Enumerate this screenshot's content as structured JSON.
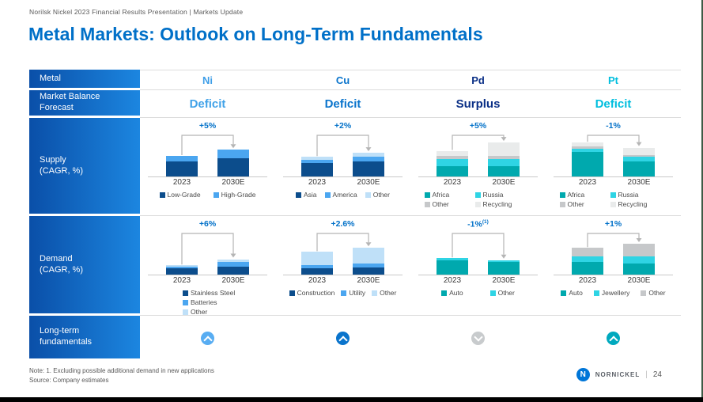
{
  "page": {
    "breadcrumb": "Norilsk Nickel 2023 Financial Results Presentation | Markets Update",
    "title": "Metal Markets: Outlook on Long-Term Fundamentals",
    "note": "Note: 1. Excluding possible additional demand in new applications",
    "source": "Source: Company estimates",
    "logo_text": "NORNICKEL",
    "logo_glyph": "N",
    "page_divider": "|",
    "page_number": "24"
  },
  "table": {
    "row_labels": {
      "metal": "Metal",
      "forecast_line1": "Market Balance",
      "forecast_line2": "Forecast",
      "supply_line1": "Supply",
      "supply_line2": "(CAGR, %)",
      "demand_line1": "Demand",
      "demand_line2": "(CAGR, %)",
      "fundamentals_line1": "Long-term",
      "fundamentals_line2": "fundamentals"
    },
    "metals": [
      {
        "symbol": "Ni",
        "color": "#3E9EE8",
        "forecast": "Deficit",
        "forecast_color": "#41A2E8",
        "trend": "up",
        "trend_color": "#58ADF2"
      },
      {
        "symbol": "Cu",
        "color": "#0A74CC",
        "forecast": "Deficit",
        "forecast_color": "#0A74CC",
        "trend": "up",
        "trend_color": "#0A74CC"
      },
      {
        "symbol": "Pd",
        "color": "#0A2F86",
        "forecast": "Surplus",
        "forecast_color": "#0A2F86",
        "trend": "down",
        "trend_color": "#C8CBCD"
      },
      {
        "symbol": "Pt",
        "color": "#00BEDE",
        "forecast": "Deficit",
        "forecast_color": "#00BEDE",
        "trend": "up",
        "trend_color": "#00A9BE"
      }
    ]
  },
  "chart_data": [
    {
      "id": "ni-supply",
      "metal": "Ni",
      "row": "Supply (CAGR, %)",
      "type": "bar",
      "stacked": true,
      "cagr_label": "+5%",
      "cagr_sup": "",
      "categories": [
        "2023",
        "2030E"
      ],
      "unit": "relative height, estimated from pixels (no numeric axis shown)",
      "series": [
        {
          "name": "Low-Grade",
          "color": "#0C4D8C",
          "values": [
            15,
            18
          ]
        },
        {
          "name": "High-Grade",
          "color": "#4BA6F0",
          "values": [
            5,
            8
          ]
        }
      ],
      "legend_layout": "row",
      "legend_gap": 16
    },
    {
      "id": "cu-supply",
      "metal": "Cu",
      "row": "Supply (CAGR, %)",
      "type": "bar",
      "stacked": true,
      "cagr_label": "+2%",
      "cagr_sup": "",
      "categories": [
        "2023",
        "2030E"
      ],
      "unit": "relative height, estimated from pixels (no numeric axis shown)",
      "series": [
        {
          "name": "Asia",
          "color": "#0C4D8C",
          "values": [
            13,
            15
          ]
        },
        {
          "name": "America",
          "color": "#4BA6F0",
          "values": [
            3,
            4
          ]
        },
        {
          "name": "Other",
          "color": "#BFE0F8",
          "values": [
            3,
            4
          ]
        }
      ],
      "legend_layout": "row",
      "legend_gap": 10
    },
    {
      "id": "pd-supply",
      "metal": "Pd",
      "row": "Supply (CAGR, %)",
      "type": "bar",
      "stacked": true,
      "cagr_label": "+5%",
      "cagr_sup": "",
      "categories": [
        "2023",
        "2030E"
      ],
      "unit": "relative height, estimated from pixels (no numeric axis shown)",
      "series": [
        {
          "name": "Africa",
          "color": "#00A9AE",
          "values": [
            10,
            10
          ]
        },
        {
          "name": "Russia",
          "color": "#2FD4E4",
          "values": [
            7,
            7
          ]
        },
        {
          "name": "Other",
          "color": "#C6C8CA",
          "values": [
            3,
            3
          ]
        },
        {
          "name": "Recycling",
          "color": "#E9EBEB",
          "values": [
            5,
            13
          ]
        }
      ],
      "legend_layout": "grid2"
    },
    {
      "id": "pt-supply",
      "metal": "Pt",
      "row": "Supply (CAGR, %)",
      "type": "bar",
      "stacked": true,
      "cagr_label": "-1%",
      "cagr_sup": "",
      "categories": [
        "2023",
        "2030E"
      ],
      "unit": "relative height, estimated from pixels (no numeric axis shown)",
      "series": [
        {
          "name": "Africa",
          "color": "#00A9AE",
          "values": [
            24,
            15
          ]
        },
        {
          "name": "Russia",
          "color": "#2FD4E4",
          "values": [
            3,
            4
          ]
        },
        {
          "name": "Other",
          "color": "#C6C8CA",
          "values": [
            2,
            2
          ]
        },
        {
          "name": "Recycling",
          "color": "#E9EBEB",
          "values": [
            4,
            7
          ]
        }
      ],
      "legend_layout": "grid2"
    },
    {
      "id": "ni-demand",
      "metal": "Ni",
      "row": "Demand (CAGR, %)",
      "type": "bar",
      "stacked": true,
      "cagr_label": "+6%",
      "cagr_sup": "",
      "categories": [
        "2023",
        "2030E"
      ],
      "unit": "relative height, estimated from pixels (no numeric axis shown)",
      "series": [
        {
          "name": "Stainless Steel",
          "color": "#0C4D8C",
          "values": [
            6,
            8
          ]
        },
        {
          "name": "Batteries",
          "color": "#4BA6F0",
          "values": [
            2,
            4
          ]
        },
        {
          "name": "Other",
          "color": "#BFE0F8",
          "values": [
            1,
            3
          ]
        }
      ],
      "legend_layout": "column"
    },
    {
      "id": "cu-demand",
      "metal": "Cu",
      "row": "Demand (CAGR, %)",
      "type": "bar",
      "stacked": true,
      "cagr_label": "+2.6%",
      "cagr_sup": "",
      "categories": [
        "2023",
        "2030E"
      ],
      "unit": "relative height, estimated from pixels (no numeric axis shown)",
      "series": [
        {
          "name": "Construction",
          "color": "#0C4D8C",
          "values": [
            6,
            7
          ]
        },
        {
          "name": "Utility",
          "color": "#4BA6F0",
          "values": [
            3,
            4
          ]
        },
        {
          "name": "Other",
          "color": "#BFE0F8",
          "values": [
            13,
            15
          ]
        }
      ],
      "legend_layout": "row",
      "legend_gap": 8
    },
    {
      "id": "pd-demand",
      "metal": "Pd",
      "row": "Demand (CAGR, %)",
      "type": "bar",
      "stacked": true,
      "cagr_label": "-1%",
      "cagr_sup": "(1)",
      "categories": [
        "2023",
        "2030E"
      ],
      "unit": "relative height, estimated from pixels (no numeric axis shown)",
      "series": [
        {
          "name": "Auto",
          "color": "#00A9AE",
          "values": [
            14,
            12
          ]
        },
        {
          "name": "Other",
          "color": "#2FD4E4",
          "values": [
            2,
            2
          ]
        }
      ],
      "legend_layout": "row",
      "legend_gap": 34
    },
    {
      "id": "pt-demand",
      "metal": "Pt",
      "row": "Demand (CAGR, %)",
      "type": "bar",
      "stacked": true,
      "cagr_label": "+1%",
      "cagr_sup": "",
      "categories": [
        "2023",
        "2030E"
      ],
      "unit": "relative height, estimated from pixels (no numeric axis shown)",
      "series": [
        {
          "name": "Auto",
          "color": "#00A9AE",
          "values": [
            12,
            11
          ]
        },
        {
          "name": "Jewellery",
          "color": "#2FD4E4",
          "values": [
            6,
            7
          ]
        },
        {
          "name": "Other",
          "color": "#C6C8CA",
          "values": [
            8,
            12
          ]
        }
      ],
      "legend_layout": "row",
      "legend_gap": 14
    }
  ]
}
